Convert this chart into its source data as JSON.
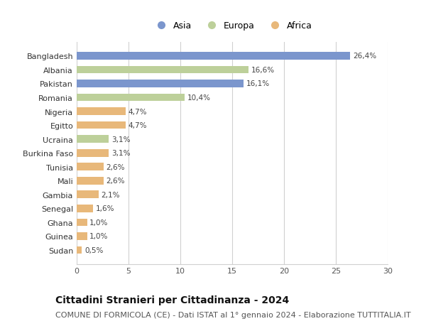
{
  "categories": [
    "Bangladesh",
    "Albania",
    "Pakistan",
    "Romania",
    "Nigeria",
    "Egitto",
    "Ucraina",
    "Burkina Faso",
    "Tunisia",
    "Mali",
    "Gambia",
    "Senegal",
    "Ghana",
    "Guinea",
    "Sudan"
  ],
  "values": [
    26.4,
    16.6,
    16.1,
    10.4,
    4.7,
    4.7,
    3.1,
    3.1,
    2.6,
    2.6,
    2.1,
    1.6,
    1.0,
    1.0,
    0.5
  ],
  "labels": [
    "26,4%",
    "16,6%",
    "16,1%",
    "10,4%",
    "4,7%",
    "4,7%",
    "3,1%",
    "3,1%",
    "2,6%",
    "2,6%",
    "2,1%",
    "1,6%",
    "1,0%",
    "1,0%",
    "0,5%"
  ],
  "continents": [
    "Asia",
    "Europa",
    "Asia",
    "Europa",
    "Africa",
    "Africa",
    "Europa",
    "Africa",
    "Africa",
    "Africa",
    "Africa",
    "Africa",
    "Africa",
    "Africa",
    "Africa"
  ],
  "colors": {
    "Asia": "#7b96cd",
    "Europa": "#bdd09a",
    "Africa": "#e8b87a"
  },
  "xlim": [
    0,
    30
  ],
  "xticks": [
    0,
    5,
    10,
    15,
    20,
    25,
    30
  ],
  "title": "Cittadini Stranieri per Cittadinanza - 2024",
  "subtitle": "COMUNE DI FORMICOLA (CE) - Dati ISTAT al 1° gennaio 2024 - Elaborazione TUTTITALIA.IT",
  "background_color": "#ffffff",
  "grid_color": "#d0d0d0",
  "bar_height": 0.55,
  "label_fontsize": 7.5,
  "title_fontsize": 10,
  "subtitle_fontsize": 8,
  "ytick_fontsize": 8,
  "xtick_fontsize": 8,
  "legend_fontsize": 9
}
